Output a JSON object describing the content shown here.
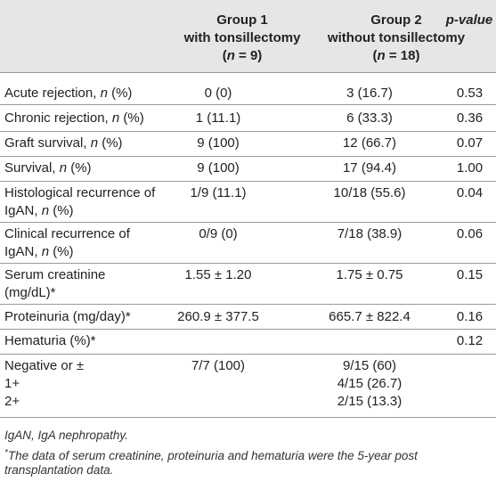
{
  "header": {
    "col1": [
      "Group 1",
      "with tonsillectomy",
      "(n = 9)"
    ],
    "col2": [
      "Group 2",
      "without tonsillectomy",
      "(n = 18)"
    ],
    "col3": "p-value"
  },
  "rows": [
    {
      "label": [
        "Acute rejection, n (%)"
      ],
      "g1": "0 (0)",
      "g2": "3 (16.7)",
      "p": "0.53"
    },
    {
      "label": [
        "Chronic rejection, n (%)"
      ],
      "g1": "1 (11.1)",
      "g2": "6 (33.3)",
      "p": "0.36"
    },
    {
      "label": [
        "Graft survival, n (%)"
      ],
      "g1": "9 (100)",
      "g2": "12 (66.7)",
      "p": "0.07"
    },
    {
      "label": [
        "Survival, n (%)"
      ],
      "g1": "9 (100)",
      "g2": "17 (94.4)",
      "p": "1.00"
    },
    {
      "label": [
        "Histological recurrence of",
        "IgAN, n (%)"
      ],
      "g1": "1/9 (11.1)",
      "g2": "10/18 (55.6)",
      "p": "0.04"
    },
    {
      "label": [
        "Clinical recurrence of",
        "IgAN, n (%)"
      ],
      "g1": "0/9 (0)",
      "g2": "7/18 (38.9)",
      "p": "0.06"
    },
    {
      "label": [
        "Serum creatinine",
        "(mg/dL)*"
      ],
      "g1": "1.55 ± 1.20",
      "g2": "1.75 ± 0.75",
      "p": "0.15"
    },
    {
      "label": [
        "Proteinuria (mg/day)*"
      ],
      "g1": "260.9 ± 377.5",
      "g2": "665.7 ± 822.4",
      "p": "0.16"
    },
    {
      "label": [
        "Hematuria (%)*"
      ],
      "g1": "",
      "g2": "",
      "p": "0.12"
    },
    {
      "label": [
        "Negative or ±",
        "1+",
        "2+"
      ],
      "g1": "7/7 (100)",
      "g2": [
        "9/15 (60)",
        "4/15 (26.7)",
        "2/15 (13.3)"
      ],
      "p": ""
    }
  ],
  "footnotes": {
    "abbrev": "IgAN, IgA nephropathy.",
    "asterisk_mark": "*",
    "asterisk_line1": "The data of serum creatinine, proteinuria and hematuria were the 5-year post",
    "asterisk_line2": "transplantation data."
  }
}
